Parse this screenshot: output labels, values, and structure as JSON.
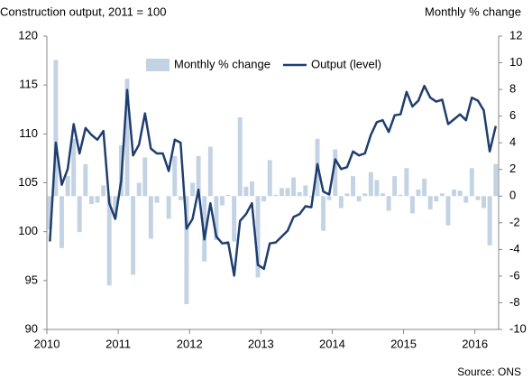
{
  "chart_data": {
    "type": "bar-line",
    "title": "Construction output, 2011 = 100",
    "y2_title": "Monthly % change",
    "source": "Source: ONS",
    "x": [
      2010.042,
      2010.125,
      2010.208,
      2010.292,
      2010.375,
      2010.458,
      2010.542,
      2010.625,
      2010.708,
      2010.792,
      2010.875,
      2010.958,
      2011.042,
      2011.125,
      2011.208,
      2011.292,
      2011.375,
      2011.458,
      2011.542,
      2011.625,
      2011.708,
      2011.792,
      2011.875,
      2011.958,
      2012.042,
      2012.125,
      2012.208,
      2012.292,
      2012.375,
      2012.458,
      2012.542,
      2012.625,
      2012.708,
      2012.792,
      2012.875,
      2012.958,
      2013.042,
      2013.125,
      2013.208,
      2013.292,
      2013.375,
      2013.458,
      2013.542,
      2013.625,
      2013.708,
      2013.792,
      2013.875,
      2013.958,
      2014.042,
      2014.125,
      2014.208,
      2014.292,
      2014.375,
      2014.458,
      2014.542,
      2014.625,
      2014.708,
      2014.792,
      2014.875,
      2014.958,
      2015.042,
      2015.125,
      2015.208,
      2015.292,
      2015.375,
      2015.458,
      2015.542,
      2015.625,
      2015.708,
      2015.792,
      2015.875,
      2015.958,
      2016.042,
      2016.125,
      2016.208,
      2016.292
    ],
    "series": [
      {
        "name": "Monthly % change",
        "kind": "bar",
        "axis": "y2",
        "color": "#c3d3e3",
        "values": [
          -2.5,
          10.2,
          -3.9,
          1.5,
          4.3,
          -2.7,
          2.4,
          -0.6,
          -0.5,
          0.8,
          -6.7,
          -1.6,
          3.8,
          8.8,
          -5.9,
          1.0,
          2.9,
          -3.2,
          -0.5,
          0.0,
          -1.7,
          3.0,
          -0.3,
          -8.1,
          1.0,
          3.0,
          -4.9,
          3.7,
          -3.3,
          -0.7,
          0.1,
          -3.4,
          5.9,
          0.7,
          1.1,
          -6.1,
          -0.4,
          2.7,
          0.1,
          0.6,
          0.6,
          1.4,
          0.3,
          0.8,
          -0.1,
          4.3,
          -2.6,
          -0.3,
          3.5,
          -0.9,
          0.2,
          1.5,
          -0.4,
          0.2,
          1.8,
          1.2,
          0.2,
          -1.1,
          1.5,
          0.1,
          2.1,
          -1.3,
          0.5,
          1.3,
          -1.0,
          -0.4,
          0.2,
          -2.2,
          0.5,
          0.4,
          -0.5,
          2.1,
          -0.3,
          -0.9,
          -3.7,
          2.4
        ]
      },
      {
        "name": "Output (level)",
        "kind": "line",
        "axis": "y",
        "color": "#1f3e6f",
        "values": [
          99.0,
          109.1,
          104.8,
          106.4,
          111.0,
          108.0,
          110.6,
          109.9,
          109.4,
          110.3,
          102.9,
          101.3,
          105.2,
          114.5,
          107.8,
          108.9,
          112.1,
          108.5,
          108.0,
          108.0,
          106.2,
          109.4,
          109.1,
          100.3,
          101.3,
          104.3,
          99.2,
          102.9,
          99.5,
          98.8,
          98.9,
          95.5,
          101.1,
          101.8,
          102.9,
          96.6,
          96.2,
          98.8,
          98.9,
          99.5,
          100.1,
          101.5,
          101.8,
          102.6,
          102.5,
          106.9,
          104.1,
          103.8,
          107.4,
          106.4,
          106.6,
          108.2,
          107.8,
          108.0,
          109.9,
          111.2,
          111.4,
          110.2,
          111.9,
          112.0,
          114.3,
          112.8,
          113.4,
          114.9,
          113.7,
          113.3,
          113.5,
          111.0,
          111.5,
          112.0,
          111.4,
          113.7,
          113.4,
          112.4,
          108.2,
          110.8
        ]
      }
    ],
    "xlim": [
      2010,
      2016.333
    ],
    "xticks": [
      2010,
      2011,
      2012,
      2013,
      2014,
      2015,
      2016
    ],
    "ylim": [
      90,
      120
    ],
    "yticks": [
      90,
      95,
      100,
      105,
      110,
      115,
      120
    ],
    "y2lim": [
      -10,
      12
    ],
    "y2ticks": [
      -10,
      -8,
      -6,
      -4,
      -2,
      0,
      2,
      4,
      6,
      8,
      10,
      12
    ],
    "grid": false,
    "legend": "top"
  }
}
